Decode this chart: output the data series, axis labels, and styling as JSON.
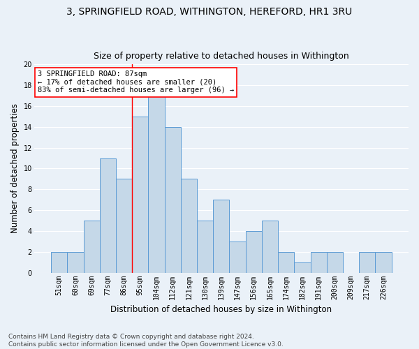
{
  "title": "3, SPRINGFIELD ROAD, WITHINGTON, HEREFORD, HR1 3RU",
  "subtitle": "Size of property relative to detached houses in Withington",
  "xlabel": "Distribution of detached houses by size in Withington",
  "ylabel": "Number of detached properties",
  "categories": [
    "51sqm",
    "60sqm",
    "69sqm",
    "77sqm",
    "86sqm",
    "95sqm",
    "104sqm",
    "112sqm",
    "121sqm",
    "130sqm",
    "139sqm",
    "147sqm",
    "156sqm",
    "165sqm",
    "174sqm",
    "182sqm",
    "191sqm",
    "200sqm",
    "209sqm",
    "217sqm",
    "226sqm"
  ],
  "values": [
    2,
    2,
    5,
    11,
    9,
    15,
    17,
    14,
    9,
    5,
    7,
    3,
    4,
    5,
    2,
    1,
    2,
    2,
    0,
    2,
    2
  ],
  "bar_color": "#c5d8e8",
  "bar_edge_color": "#5b9bd5",
  "vline_x": 4.5,
  "vline_color": "red",
  "annotation_text": "3 SPRINGFIELD ROAD: 87sqm\n← 17% of detached houses are smaller (20)\n83% of semi-detached houses are larger (96) →",
  "annotation_box_color": "white",
  "annotation_box_edge_color": "red",
  "ylim": [
    0,
    20
  ],
  "yticks": [
    0,
    2,
    4,
    6,
    8,
    10,
    12,
    14,
    16,
    18,
    20
  ],
  "footnote": "Contains HM Land Registry data © Crown copyright and database right 2024.\nContains public sector information licensed under the Open Government Licence v3.0.",
  "bg_color": "#eaf1f8",
  "plot_bg_color": "#eaf1f8",
  "grid_color": "white",
  "title_fontsize": 10,
  "subtitle_fontsize": 9,
  "xlabel_fontsize": 8.5,
  "ylabel_fontsize": 8.5,
  "tick_fontsize": 7,
  "footnote_fontsize": 6.5,
  "annotation_fontsize": 7.5
}
